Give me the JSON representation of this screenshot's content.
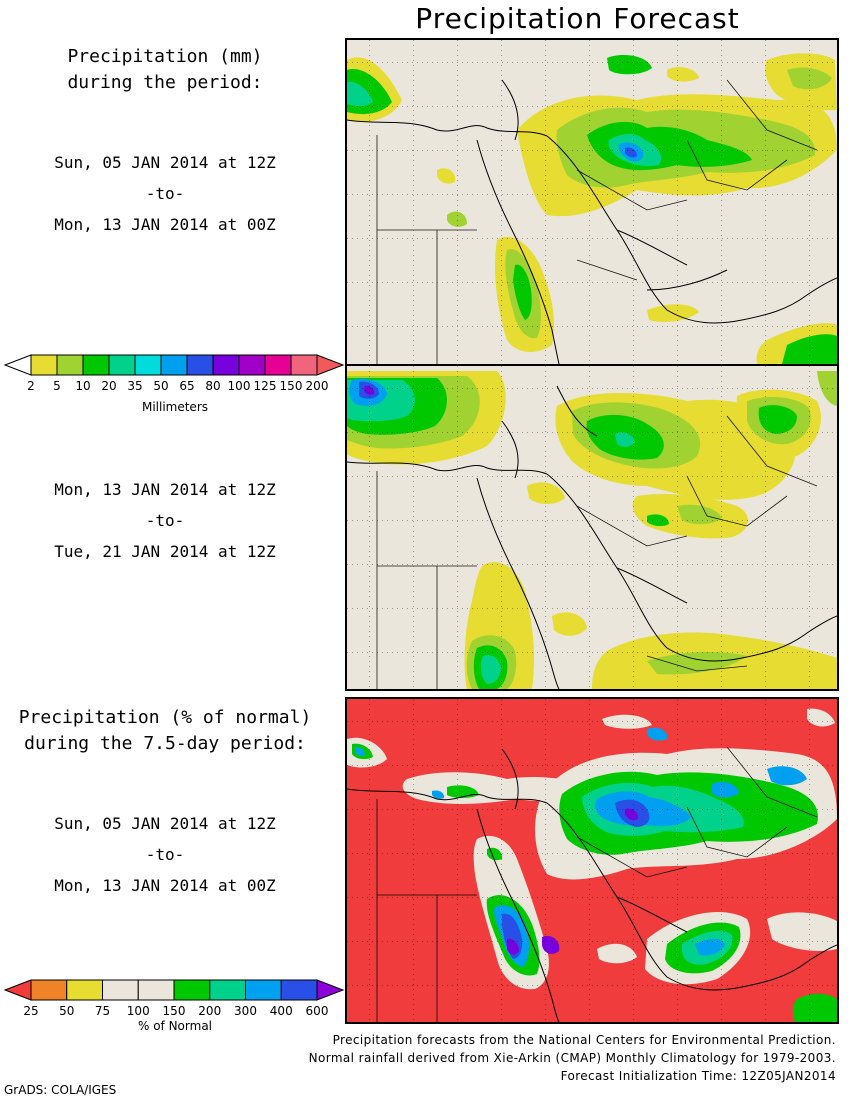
{
  "title": "Precipitation Forecast",
  "panel1": {
    "heading_line1": "Precipitation (mm)",
    "heading_line2": "during the period:",
    "start": "Sun, 05 JAN 2014 at 12Z",
    "sep": "-to-",
    "end": "Mon, 13 JAN 2014 at 00Z"
  },
  "panel2": {
    "start": "Mon, 13 JAN 2014 at 12Z",
    "sep": "-to-",
    "end": "Tue, 21 JAN 2014 at 12Z"
  },
  "panel3": {
    "heading_line1": "Precipitation (% of normal)",
    "heading_line2": "during the 7.5-day period:",
    "start": "Sun, 05 JAN 2014 at 12Z",
    "sep": "-to-",
    "end": "Mon, 13 JAN 2014 at 00Z"
  },
  "mm_colorbar": {
    "label": "Millimeters",
    "ticks": [
      "2",
      "5",
      "10",
      "20",
      "35",
      "50",
      "65",
      "80",
      "100",
      "125",
      "150",
      "200"
    ],
    "colors": [
      "#e6dc32",
      "#a0d232",
      "#00c800",
      "#00d28c",
      "#00dcdc",
      "#00a0f0",
      "#2850e6",
      "#7800dc",
      "#a000c8",
      "#e60096",
      "#f0647c"
    ],
    "end_low": "#ffffff",
    "end_high": "#f05a5a"
  },
  "pct_colorbar": {
    "label": "% of Normal",
    "ticks": [
      "25",
      "50",
      "75",
      "100",
      "150",
      "200",
      "300",
      "400",
      "600"
    ],
    "colors": [
      "#f08228",
      "#e6dc32",
      "#ebe6dc",
      "#ebe6dc",
      "#00c800",
      "#00d28c",
      "#00a0f0",
      "#2850e6"
    ],
    "end_low": "#f03c3c",
    "end_high": "#8c00dc"
  },
  "credits": {
    "line1": "Precipitation forecasts from the National Centers for Environmental Prediction.",
    "line2": "Normal rainfall derived from Xie-Arkin (CMAP) Monthly Climatology for 1979-2003.",
    "line3": "Forecast Initialization Time: 12Z05JAN2014"
  },
  "software": "GrADS: COLA/IGES",
  "colors": {
    "land": "#ebe6dc",
    "dry_pct": "#f03c3c"
  }
}
